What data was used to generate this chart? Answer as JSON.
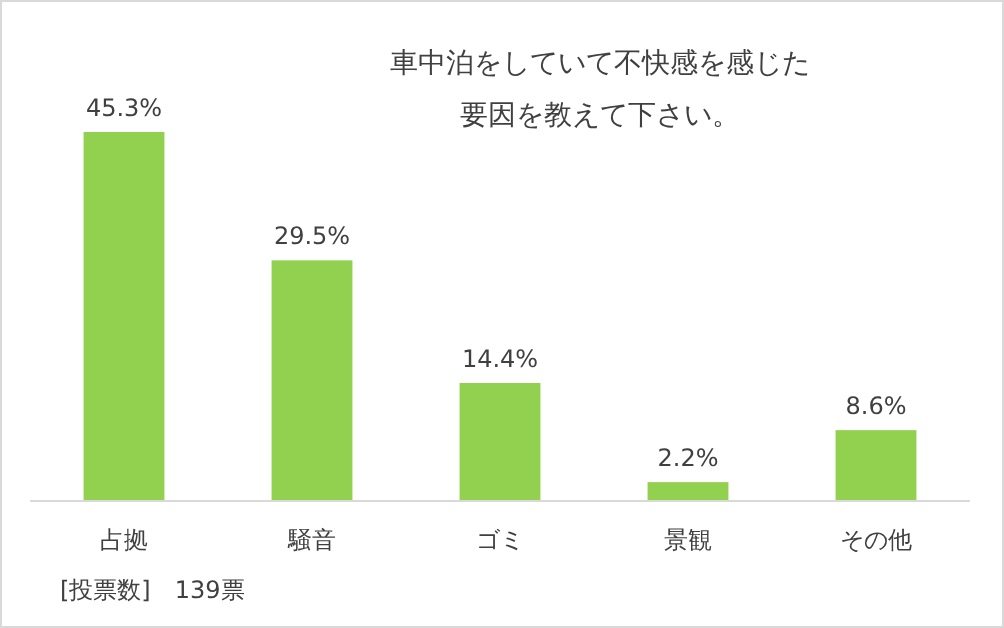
{
  "chart_data": {
    "type": "bar",
    "title": "車中泊をしていて不快感を感じた要因を教えて下さい。",
    "categories": [
      "占拠",
      "騒音",
      "ゴミ",
      "景観",
      "その他"
    ],
    "values": [
      45.3,
      29.5,
      14.4,
      2.2,
      8.6
    ],
    "value_labels": [
      "45.3%",
      "29.5%",
      "14.4%",
      "2.2%",
      "8.6%"
    ],
    "color": "#92d050",
    "annotations": [
      "[投票数]　139票"
    ]
  }
}
